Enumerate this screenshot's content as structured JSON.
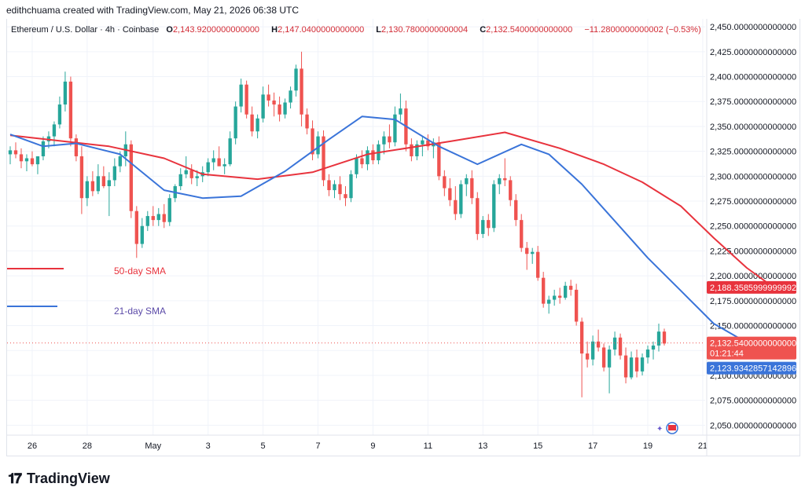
{
  "credit": "edithchuama created with TradingView.com, May 21, 2026 06:38 UTC",
  "legend": {
    "symbol": "Ethereum / U.S. Dollar · 4h · Coinbase",
    "o_label": "O",
    "o_value": "2,143.9200000000000",
    "h_label": "H",
    "h_value": "2,147.0400000000000",
    "l_label": "L",
    "l_value": "2,130.7800000000004",
    "c_label": "C",
    "c_value": "2,132.5400000000000",
    "change": "−11.2800000000002 (−0.53%)"
  },
  "sma50_label": "50-day SMA",
  "sma21_label": "21-day SMA",
  "footer_brand": "TradingView",
  "colors": {
    "up": "#26a69a",
    "down": "#ef5350",
    "sma50": "#e8333d",
    "sma21": "#3a74d9",
    "label50": "#e8333d",
    "label21": "#5b4aa8"
  },
  "price_tags": {
    "sma50": "2,188.3585999999992",
    "last_price": "2,132.5400000000000",
    "countdown": "01:21:44",
    "sma21": "2,123.9342857142896"
  },
  "chart_data": {
    "type": "candlestick",
    "y_range": [
      2040,
      2458
    ],
    "y_ticks": [
      {
        "value": 2450,
        "label": "2,450.0000000000000"
      },
      {
        "value": 2425,
        "label": "2,425.0000000000000"
      },
      {
        "value": 2400,
        "label": "2,400.0000000000000"
      },
      {
        "value": 2375,
        "label": "2,375.0000000000000"
      },
      {
        "value": 2350,
        "label": "2,350.0000000000000"
      },
      {
        "value": 2325,
        "label": "2,325.0000000000000"
      },
      {
        "value": 2300,
        "label": "2,300.0000000000000"
      },
      {
        "value": 2275,
        "label": "2,275.0000000000000"
      },
      {
        "value": 2250,
        "label": "2,250.0000000000000"
      },
      {
        "value": 2225,
        "label": "2,225.0000000000000"
      },
      {
        "value": 2200,
        "label": "2,200.0000000000000"
      },
      {
        "value": 2175,
        "label": "2,175.0000000000000"
      },
      {
        "value": 2150,
        "label": "2,150.0000000000000"
      },
      {
        "value": 2125,
        "label": "2,125.0000000000000"
      },
      {
        "value": 2100,
        "label": "2,100.0000000000000"
      },
      {
        "value": 2075,
        "label": "2,075.0000000000000"
      },
      {
        "value": 2050,
        "label": "2,050.0000000000000"
      }
    ],
    "x_ticks": [
      "26",
      "28",
      "May",
      "3",
      "5",
      "7",
      "9",
      "11",
      "13",
      "15",
      "17",
      "19",
      "21"
    ],
    "last_close": 2132.54,
    "sma50": [
      {
        "bar": 0,
        "value": 2341
      },
      {
        "bar": 18,
        "value": 2330
      },
      {
        "bar": 28,
        "value": 2318
      },
      {
        "bar": 35,
        "value": 2302
      },
      {
        "bar": 45,
        "value": 2297
      },
      {
        "bar": 55,
        "value": 2304
      },
      {
        "bar": 65,
        "value": 2322
      },
      {
        "bar": 80,
        "value": 2335
      },
      {
        "bar": 90,
        "value": 2344
      },
      {
        "bar": 100,
        "value": 2328
      },
      {
        "bar": 108,
        "value": 2312
      },
      {
        "bar": 115,
        "value": 2294
      },
      {
        "bar": 122,
        "value": 2270
      },
      {
        "bar": 128,
        "value": 2238
      },
      {
        "bar": 134,
        "value": 2208
      },
      {
        "bar": 139,
        "value": 2188
      }
    ],
    "sma21": [
      {
        "bar": 0,
        "value": 2342
      },
      {
        "bar": 6,
        "value": 2330
      },
      {
        "bar": 12,
        "value": 2333
      },
      {
        "bar": 20,
        "value": 2322
      },
      {
        "bar": 28,
        "value": 2286
      },
      {
        "bar": 35,
        "value": 2278
      },
      {
        "bar": 42,
        "value": 2280
      },
      {
        "bar": 50,
        "value": 2305
      },
      {
        "bar": 58,
        "value": 2337
      },
      {
        "bar": 64,
        "value": 2360
      },
      {
        "bar": 70,
        "value": 2357
      },
      {
        "bar": 78,
        "value": 2330
      },
      {
        "bar": 85,
        "value": 2312
      },
      {
        "bar": 93,
        "value": 2332
      },
      {
        "bar": 98,
        "value": 2322
      },
      {
        "bar": 104,
        "value": 2292
      },
      {
        "bar": 110,
        "value": 2255
      },
      {
        "bar": 116,
        "value": 2218
      },
      {
        "bar": 122,
        "value": 2185
      },
      {
        "bar": 128,
        "value": 2152
      },
      {
        "bar": 134,
        "value": 2133
      },
      {
        "bar": 139,
        "value": 2124
      }
    ],
    "candles": [
      [
        2322,
        2330,
        2312,
        2326
      ],
      [
        2326,
        2334,
        2318,
        2322
      ],
      [
        2322,
        2328,
        2308,
        2315
      ],
      [
        2315,
        2322,
        2305,
        2318
      ],
      [
        2318,
        2325,
        2310,
        2312
      ],
      [
        2312,
        2318,
        2302,
        2320
      ],
      [
        2320,
        2340,
        2316,
        2335
      ],
      [
        2335,
        2345,
        2328,
        2340
      ],
      [
        2340,
        2355,
        2330,
        2352
      ],
      [
        2352,
        2380,
        2348,
        2372
      ],
      [
        2372,
        2405,
        2365,
        2395
      ],
      [
        2395,
        2400,
        2330,
        2338
      ],
      [
        2338,
        2342,
        2315,
        2320
      ],
      [
        2320,
        2330,
        2262,
        2278
      ],
      [
        2278,
        2300,
        2270,
        2295
      ],
      [
        2295,
        2305,
        2280,
        2285
      ],
      [
        2285,
        2312,
        2282,
        2300
      ],
      [
        2300,
        2310,
        2288,
        2290
      ],
      [
        2290,
        2304,
        2260,
        2296
      ],
      [
        2296,
        2318,
        2290,
        2310
      ],
      [
        2310,
        2325,
        2304,
        2320
      ],
      [
        2320,
        2345,
        2310,
        2332
      ],
      [
        2332,
        2336,
        2258,
        2265
      ],
      [
        2265,
        2270,
        2218,
        2232
      ],
      [
        2232,
        2258,
        2228,
        2250
      ],
      [
        2250,
        2265,
        2245,
        2260
      ],
      [
        2260,
        2270,
        2250,
        2256
      ],
      [
        2256,
        2268,
        2250,
        2262
      ],
      [
        2262,
        2272,
        2248,
        2254
      ],
      [
        2254,
        2282,
        2250,
        2278
      ],
      [
        2278,
        2292,
        2274,
        2290
      ],
      [
        2290,
        2308,
        2286,
        2302
      ],
      [
        2302,
        2320,
        2298,
        2306
      ],
      [
        2306,
        2312,
        2292,
        2298
      ],
      [
        2298,
        2306,
        2290,
        2300
      ],
      [
        2300,
        2310,
        2294,
        2304
      ],
      [
        2304,
        2318,
        2300,
        2314
      ],
      [
        2314,
        2326,
        2306,
        2318
      ],
      [
        2318,
        2330,
        2312,
        2310
      ],
      [
        2310,
        2318,
        2302,
        2312
      ],
      [
        2312,
        2345,
        2310,
        2338
      ],
      [
        2338,
        2375,
        2332,
        2370
      ],
      [
        2370,
        2398,
        2364,
        2392
      ],
      [
        2392,
        2396,
        2358,
        2362
      ],
      [
        2362,
        2370,
        2340,
        2345
      ],
      [
        2345,
        2362,
        2338,
        2358
      ],
      [
        2358,
        2390,
        2354,
        2382
      ],
      [
        2382,
        2392,
        2370,
        2376
      ],
      [
        2376,
        2384,
        2360,
        2372
      ],
      [
        2372,
        2380,
        2355,
        2362
      ],
      [
        2362,
        2378,
        2358,
        2374
      ],
      [
        2374,
        2390,
        2368,
        2386
      ],
      [
        2386,
        2412,
        2380,
        2408
      ],
      [
        2408,
        2425,
        2350,
        2362
      ],
      [
        2362,
        2368,
        2342,
        2348
      ],
      [
        2348,
        2356,
        2316,
        2322
      ],
      [
        2322,
        2345,
        2318,
        2340
      ],
      [
        2340,
        2346,
        2290,
        2296
      ],
      [
        2296,
        2302,
        2280,
        2286
      ],
      [
        2286,
        2296,
        2278,
        2292
      ],
      [
        2292,
        2300,
        2276,
        2282
      ],
      [
        2282,
        2290,
        2270,
        2278
      ],
      [
        2278,
        2306,
        2274,
        2302
      ],
      [
        2302,
        2322,
        2298,
        2318
      ],
      [
        2318,
        2326,
        2308,
        2312
      ],
      [
        2312,
        2330,
        2306,
        2326
      ],
      [
        2326,
        2332,
        2312,
        2316
      ],
      [
        2316,
        2336,
        2312,
        2332
      ],
      [
        2332,
        2345,
        2322,
        2340
      ],
      [
        2340,
        2352,
        2328,
        2334
      ],
      [
        2334,
        2370,
        2330,
        2362
      ],
      [
        2362,
        2383,
        2355,
        2368
      ],
      [
        2368,
        2376,
        2325,
        2332
      ],
      [
        2332,
        2338,
        2315,
        2320
      ],
      [
        2320,
        2336,
        2316,
        2332
      ],
      [
        2332,
        2340,
        2320,
        2336
      ],
      [
        2336,
        2342,
        2326,
        2330
      ],
      [
        2330,
        2338,
        2318,
        2334
      ],
      [
        2334,
        2340,
        2296,
        2300
      ],
      [
        2300,
        2306,
        2280,
        2288
      ],
      [
        2288,
        2298,
        2270,
        2276
      ],
      [
        2276,
        2290,
        2256,
        2262
      ],
      [
        2262,
        2296,
        2258,
        2292
      ],
      [
        2292,
        2302,
        2280,
        2298
      ],
      [
        2298,
        2306,
        2272,
        2278
      ],
      [
        2278,
        2284,
        2236,
        2242
      ],
      [
        2242,
        2260,
        2238,
        2256
      ],
      [
        2256,
        2262,
        2240,
        2248
      ],
      [
        2248,
        2296,
        2244,
        2292
      ],
      [
        2292,
        2302,
        2282,
        2298
      ],
      [
        2298,
        2318,
        2290,
        2296
      ],
      [
        2296,
        2300,
        2270,
        2276
      ],
      [
        2276,
        2282,
        2250,
        2256
      ],
      [
        2256,
        2262,
        2224,
        2228
      ],
      [
        2228,
        2234,
        2206,
        2222
      ],
      [
        2222,
        2228,
        2212,
        2224
      ],
      [
        2224,
        2230,
        2195,
        2198
      ],
      [
        2198,
        2204,
        2168,
        2172
      ],
      [
        2172,
        2180,
        2162,
        2176
      ],
      [
        2176,
        2186,
        2170,
        2180
      ],
      [
        2180,
        2188,
        2172,
        2178
      ],
      [
        2178,
        2194,
        2176,
        2190
      ],
      [
        2190,
        2196,
        2180,
        2186
      ],
      [
        2186,
        2192,
        2150,
        2154
      ],
      [
        2154,
        2158,
        2078,
        2122
      ],
      [
        2122,
        2134,
        2108,
        2116
      ],
      [
        2116,
        2140,
        2110,
        2134
      ],
      [
        2134,
        2146,
        2124,
        2128
      ],
      [
        2128,
        2132,
        2104,
        2108
      ],
      [
        2108,
        2130,
        2082,
        2126
      ],
      [
        2126,
        2144,
        2120,
        2138
      ],
      [
        2138,
        2142,
        2116,
        2120
      ],
      [
        2120,
        2128,
        2092,
        2098
      ],
      [
        2098,
        2124,
        2096,
        2118
      ],
      [
        2118,
        2126,
        2098,
        2104
      ],
      [
        2104,
        2122,
        2100,
        2118
      ],
      [
        2118,
        2130,
        2112,
        2126
      ],
      [
        2126,
        2134,
        2116,
        2130
      ],
      [
        2130,
        2152,
        2124,
        2144
      ],
      [
        2144,
        2147,
        2130,
        2132
      ]
    ]
  }
}
